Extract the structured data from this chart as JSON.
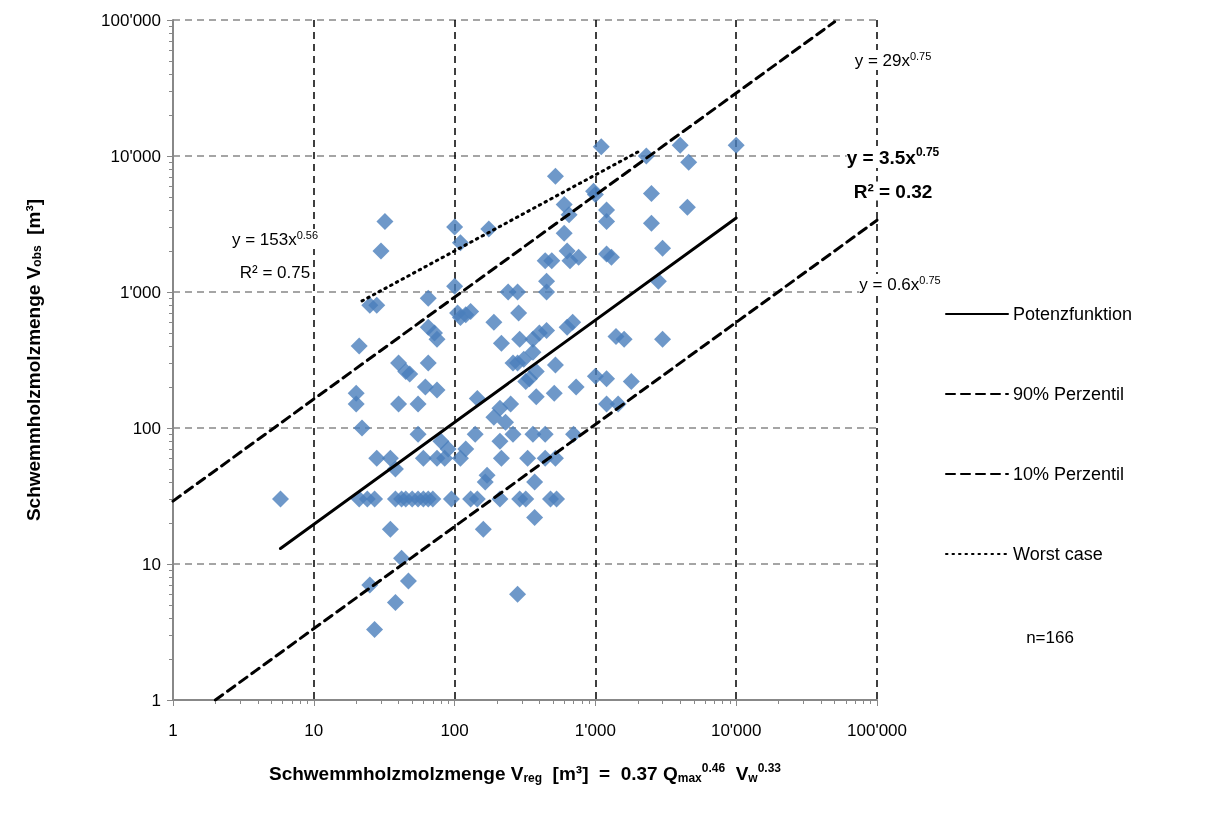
{
  "chart_data": {
    "type": "scatter",
    "xlabel": "Schwemmholzmolzmenge V$_{reg}$  [m³]  =  0.37 Q$_{max}$$^{0.46}$  V$_{w}$$^{0.33}$",
    "ylabel": "Schwemmholzmolzmenge V$_{obs}$  [m³]",
    "log": "xy",
    "grid": true,
    "legend": "right",
    "marker": "diamond",
    "xlim": [
      1,
      100000
    ],
    "xticks": [
      1,
      10,
      100,
      {
        "value": 1000,
        "label": "1'000"
      },
      {
        "value": 10000,
        "label": "10'000"
      },
      {
        "value": 100000,
        "label": "100'000"
      }
    ],
    "ylim": [
      1,
      100000
    ],
    "yticks": [
      1,
      10,
      100,
      {
        "value": 1000,
        "label": "1'000"
      },
      {
        "value": 10000,
        "label": "10'000"
      },
      {
        "value": 100000,
        "label": "100'000"
      }
    ],
    "annotations": [
      "y = 29x$^{0.75}$",
      "y = 3.5x$^{0.75}$",
      "R² = 0.32",
      "y = 0.6x$^{0.75}$",
      "y = 153x$^{0.56}$",
      "R² = 0.75",
      "n=166"
    ],
    "series": [
      {
        "color": "#4a7ebb",
        "x": [
          5.8,
          32,
          30,
          21,
          20,
          20,
          22,
          21,
          24,
          27,
          28,
          25,
          28,
          25,
          27,
          35,
          35,
          38,
          38,
          40,
          42,
          47,
          40,
          45,
          48,
          38,
          42,
          45,
          50,
          55,
          60,
          65,
          70,
          55,
          60,
          65,
          65,
          72,
          75,
          65,
          62,
          75,
          55,
          75,
          85,
          80,
          90,
          95,
          100,
          110,
          100,
          105,
          110,
          120,
          130,
          120,
          110,
          140,
          145,
          130,
          145,
          175,
          165,
          170,
          160,
          190,
          190,
          210,
          215,
          210,
          215,
          210,
          240,
          250,
          230,
          260,
          260,
          280,
          280,
          285,
          290,
          290,
          320,
          280,
          310,
          320,
          330,
          340,
          360,
          360,
          380,
          360,
          380,
          370,
          370,
          400,
          440,
          440,
          450,
          450,
          450,
          440,
          490,
          520,
          520,
          510,
          480,
          530,
          520,
          600,
          600,
          630,
          660,
          630,
          650,
          690,
          700,
          760,
          730,
          970,
          1000,
          1100,
          1200,
          1200,
          1200,
          1300,
          1200,
          1200,
          1400,
          1600,
          1800,
          2300,
          2500,
          2500,
          3000,
          3000,
          2800,
          4000,
          4500,
          4600,
          10000,
          1000,
          1450
        ],
        "values": [
          30,
          3300,
          2000,
          400,
          180,
          150,
          100,
          30,
          30,
          30,
          60,
          800,
          800,
          7,
          3.3,
          18,
          60,
          50,
          5.2,
          300,
          11,
          7.5,
          150,
          260,
          250,
          30,
          30,
          30,
          30,
          30,
          30,
          30,
          30,
          90,
          60,
          900,
          550,
          500,
          450,
          300,
          200,
          190,
          150,
          60,
          60,
          80,
          70,
          30,
          3000,
          2300,
          1100,
          700,
          650,
          680,
          720,
          70,
          60,
          90,
          165,
          30,
          30,
          2900,
          40,
          45,
          18,
          600,
          120,
          140,
          420,
          80,
          60,
          30,
          1000,
          150,
          110,
          300,
          90,
          300,
          1000,
          700,
          450,
          30,
          30,
          6,
          320,
          220,
          60,
          230,
          360,
          450,
          170,
          90,
          260,
          40,
          22,
          500,
          90,
          60,
          1000,
          1200,
          520,
          1700,
          1700,
          7100,
          290,
          180,
          30,
          30,
          60,
          2700,
          4400,
          2000,
          1700,
          550,
          3700,
          600,
          90,
          1800,
          200,
          5500,
          5200,
          11700,
          4000,
          3300,
          1900,
          1800,
          230,
          150,
          470,
          450,
          220,
          10000,
          5300,
          3200,
          2100,
          450,
          1200,
          12000,
          4200,
          9000,
          12000,
          240,
          150
        ]
      },
      {
        "type": "line",
        "name": "Potenzfunktion",
        "color": "#000000",
        "marker": "none",
        "line_style": "solid",
        "x": [
          5.8,
          10000
        ],
        "values": [
          13,
          3500
        ]
      },
      {
        "type": "line",
        "name": "90% Perzentil",
        "color": "#000000",
        "marker": "none",
        "line_style": "dashed",
        "x": [
          1,
          50000
        ],
        "values": [
          29,
          97000
        ]
      },
      {
        "type": "line",
        "name": "10% Perzentil",
        "color": "#000000",
        "marker": "none",
        "line_style": "dashed",
        "x": [
          2,
          100000
        ],
        "values": [
          1,
          3370
        ]
      },
      {
        "type": "line",
        "name": "Worst case",
        "color": "#000000",
        "marker": "none",
        "line_style": "dotted",
        "x": [
          22,
          2000
        ],
        "values": [
          860,
          10700
        ]
      }
    ]
  }
}
